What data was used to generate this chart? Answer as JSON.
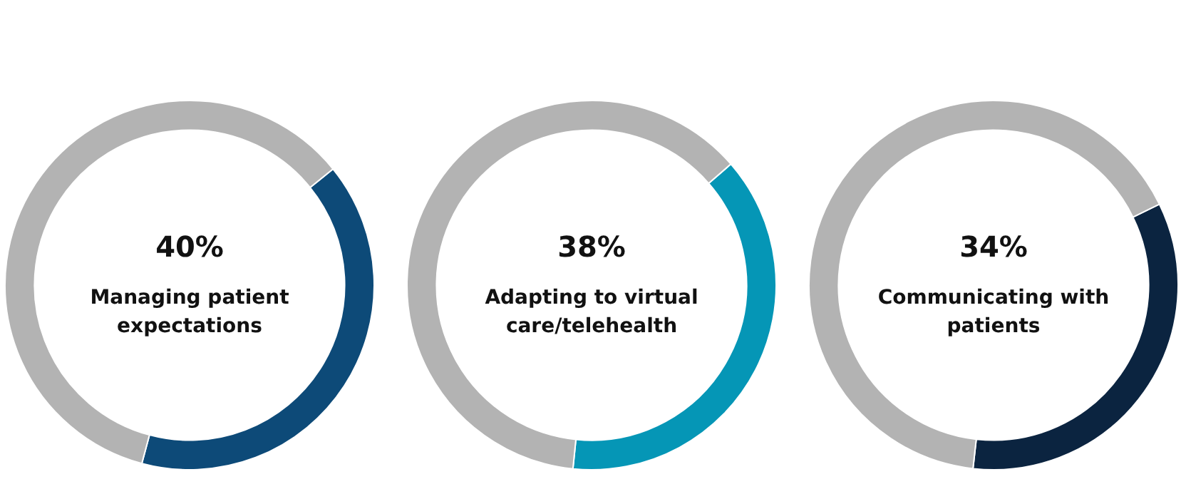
{
  "chart_data": [
    {
      "type": "donut",
      "categories": [
        "Managing patient expectations",
        null
      ],
      "values": [
        40,
        60
      ],
      "value_labels": [
        "40%",
        null
      ],
      "colors": [
        "#0d4a78",
        "#b3b3b3"
      ],
      "legend": false
    },
    {
      "type": "donut",
      "categories": [
        "Adapting to virtual care/telehealth",
        null
      ],
      "values": [
        38,
        62
      ],
      "value_labels": [
        "38%",
        null
      ],
      "colors": [
        "#0596b6",
        "#b3b3b3"
      ],
      "legend": false
    },
    {
      "type": "donut",
      "categories": [
        "Communicating with patients",
        null
      ],
      "values": [
        34,
        66
      ],
      "value_labels": [
        "34%",
        null
      ],
      "colors": [
        "#0b2440",
        "#b3b3b3"
      ],
      "legend": false
    }
  ]
}
